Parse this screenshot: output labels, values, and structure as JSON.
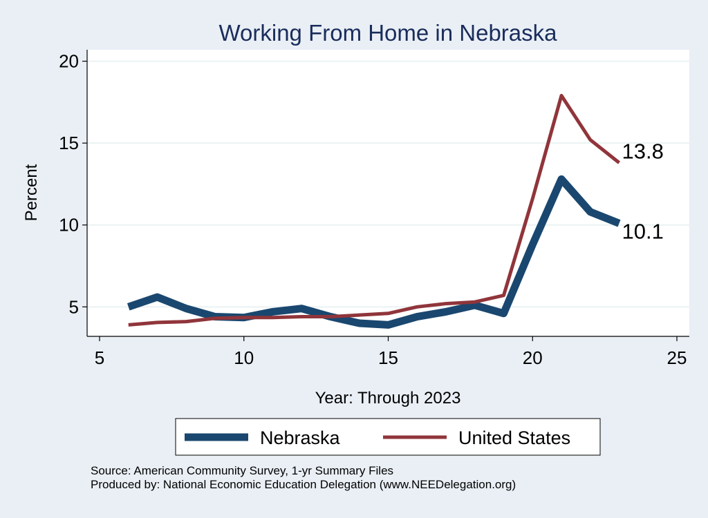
{
  "chart_data": {
    "type": "line",
    "title": "Working From Home in Nebraska",
    "xlabel": "Year: Through 2023",
    "ylabel": "Percent",
    "xlim": [
      5,
      25
    ],
    "ylim": [
      3.2,
      20.7
    ],
    "xticks": [
      5,
      10,
      15,
      20,
      25
    ],
    "yticks": [
      5,
      10,
      15,
      20
    ],
    "grid": "horizontal",
    "legend_position": "bottom",
    "x": [
      6,
      7,
      8,
      9,
      10,
      11,
      12,
      13,
      14,
      15,
      16,
      17,
      18,
      19,
      20,
      21,
      22,
      23
    ],
    "series": [
      {
        "name": "Nebraska",
        "color": "#1a476f",
        "values": [
          5.0,
          5.6,
          4.9,
          4.4,
          4.35,
          4.7,
          4.9,
          4.4,
          4.0,
          3.9,
          4.4,
          4.7,
          5.1,
          4.6,
          8.8,
          12.8,
          10.8,
          10.1
        ],
        "end_label": "10.1"
      },
      {
        "name": "United States",
        "color": "#90353b",
        "values": [
          3.9,
          4.05,
          4.1,
          4.3,
          4.35,
          4.35,
          4.4,
          4.4,
          4.5,
          4.6,
          5.0,
          5.2,
          5.3,
          5.7,
          11.6,
          17.9,
          15.2,
          13.8
        ],
        "end_label": "13.8"
      }
    ]
  },
  "notes": {
    "source": "Source: American Community Survey, 1-yr Summary Files",
    "produced_by": "Produced by: National Economic Education Delegation (www.NEEDelegation.org)"
  }
}
